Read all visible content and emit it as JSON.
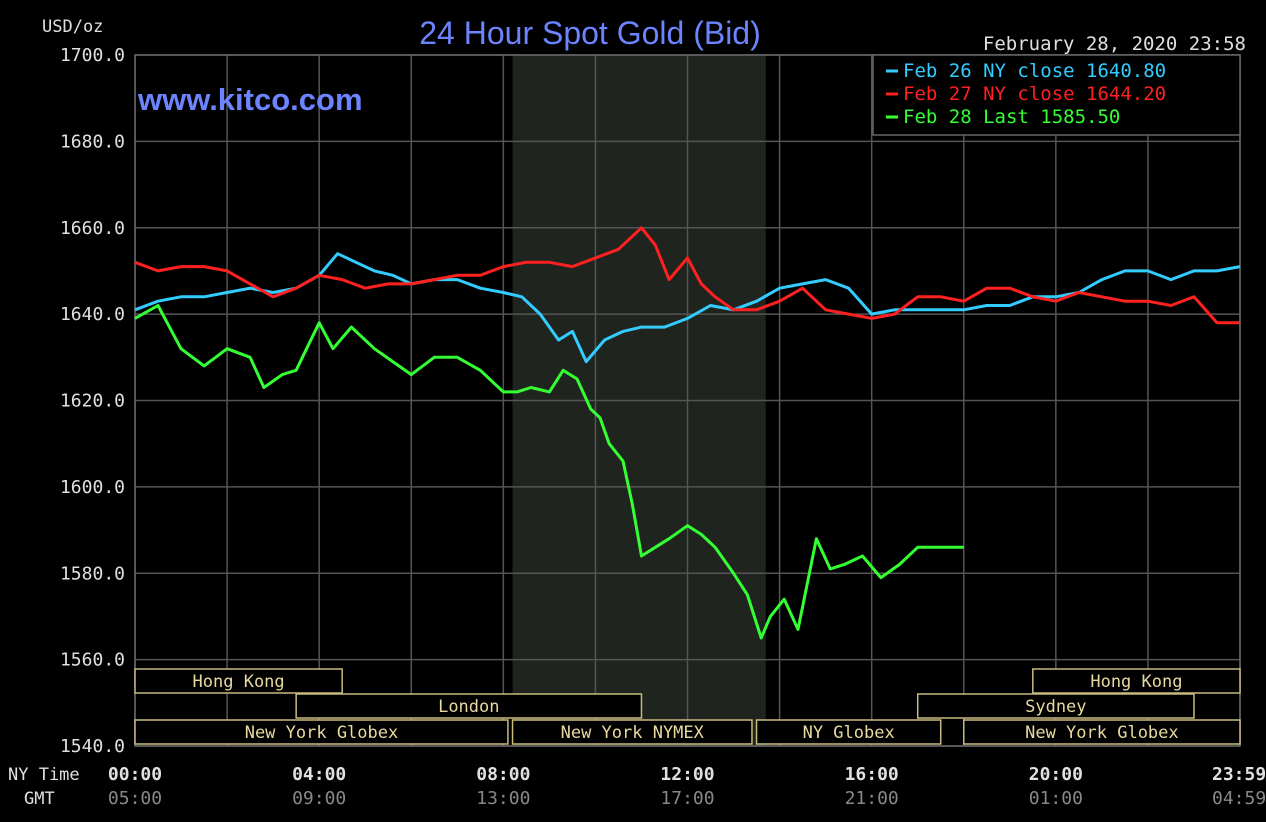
{
  "chart_data": {
    "type": "line",
    "title": "24 Hour Spot Gold (Bid)",
    "watermark": "www.kitco.com",
    "timestamp": "February 28, 2020 23:58",
    "ylabel": "USD/oz",
    "ylim": [
      1540,
      1700
    ],
    "yticks": [
      "1700.0",
      "1680.0",
      "1660.0",
      "1640.0",
      "1620.0",
      "1600.0",
      "1580.0",
      "1560.0",
      "1540.0"
    ],
    "ytick_values": [
      1700,
      1680,
      1660,
      1640,
      1620,
      1600,
      1580,
      1560,
      1540
    ],
    "xlim": [
      0,
      24
    ],
    "x_row_labels": {
      "ny": "NY Time",
      "gmt": "GMT"
    },
    "xticks_ny": [
      "00:00",
      "04:00",
      "08:00",
      "12:00",
      "16:00",
      "20:00",
      "23:59"
    ],
    "xticks_gmt": [
      "05:00",
      "09:00",
      "13:00",
      "17:00",
      "21:00",
      "01:00",
      "04:59"
    ],
    "xtick_hours": [
      0,
      4,
      8,
      12,
      16,
      20,
      23.98
    ],
    "grid": true,
    "shaded_region_hours": [
      8.2,
      13.7
    ],
    "legend_position": "top-right",
    "series": [
      {
        "name": "Feb 26 NY close 1640.80",
        "color": "#33ccff",
        "x": [
          0,
          0.5,
          1,
          1.5,
          2,
          2.5,
          3,
          3.5,
          4,
          4.4,
          4.8,
          5.2,
          5.6,
          6,
          6.5,
          7,
          7.5,
          8,
          8.4,
          8.8,
          9.2,
          9.5,
          9.8,
          10.2,
          10.6,
          11,
          11.5,
          12,
          12.5,
          13,
          13.5,
          14,
          14.5,
          15,
          15.5,
          16,
          16.5,
          17,
          17.5,
          18,
          18.5,
          19,
          19.5,
          20,
          20.5,
          21,
          21.5,
          22,
          22.5,
          23,
          23.5,
          24
        ],
        "y": [
          1641,
          1643,
          1644,
          1644,
          1645,
          1646,
          1645,
          1646,
          1649,
          1654,
          1652,
          1650,
          1649,
          1647,
          1648,
          1648,
          1646,
          1645,
          1644,
          1640,
          1634,
          1636,
          1629,
          1634,
          1636,
          1637,
          1637,
          1639,
          1642,
          1641,
          1643,
          1646,
          1647,
          1648,
          1646,
          1640,
          1641,
          1641,
          1641,
          1641,
          1642,
          1642,
          1644,
          1644,
          1645,
          1648,
          1650,
          1650,
          1648,
          1650,
          1650,
          1651
        ]
      },
      {
        "name": "Feb 27 NY close 1644.20",
        "color": "#ff2020",
        "x": [
          0,
          0.5,
          1,
          1.5,
          2,
          2.5,
          3,
          3.5,
          4,
          4.5,
          5,
          5.5,
          6,
          6.5,
          7,
          7.5,
          8,
          8.5,
          9,
          9.5,
          10,
          10.5,
          11,
          11.3,
          11.6,
          12,
          12.3,
          12.6,
          13,
          13.5,
          14,
          14.5,
          15,
          15.5,
          16,
          16.5,
          17,
          17.5,
          18,
          18.5,
          19,
          19.5,
          20,
          20.5,
          21,
          21.5,
          22,
          22.5,
          23,
          23.5,
          24
        ],
        "y": [
          1652,
          1650,
          1651,
          1651,
          1650,
          1647,
          1644,
          1646,
          1649,
          1648,
          1646,
          1647,
          1647,
          1648,
          1649,
          1649,
          1651,
          1652,
          1652,
          1651,
          1653,
          1655,
          1660,
          1656,
          1648,
          1653,
          1647,
          1644,
          1641,
          1641,
          1643,
          1646,
          1641,
          1640,
          1639,
          1640,
          1644,
          1644,
          1643,
          1646,
          1646,
          1644,
          1643,
          1645,
          1644,
          1643,
          1643,
          1642,
          1644,
          1638,
          1638
        ]
      },
      {
        "name": "Feb 28 Last 1585.50",
        "color": "#33ff33",
        "x": [
          0,
          0.5,
          0.8,
          1,
          1.5,
          2,
          2.5,
          2.8,
          3.2,
          3.5,
          4,
          4.3,
          4.7,
          5.2,
          5.6,
          6,
          6.5,
          7,
          7.5,
          8,
          8.3,
          8.6,
          9,
          9.3,
          9.6,
          9.9,
          10.1,
          10.3,
          10.6,
          10.8,
          11,
          11.3,
          11.6,
          12,
          12.3,
          12.6,
          13,
          13.3,
          13.6,
          13.8,
          14.1,
          14.4,
          14.8,
          15.1,
          15.4,
          15.8,
          16.2,
          16.6,
          17,
          17.5,
          18
        ],
        "y": [
          1639,
          1642,
          1636,
          1632,
          1628,
          1632,
          1630,
          1623,
          1626,
          1627,
          1638,
          1632,
          1637,
          1632,
          1629,
          1626,
          1630,
          1630,
          1627,
          1622,
          1622,
          1623,
          1622,
          1627,
          1625,
          1618,
          1616,
          1610,
          1606,
          1596,
          1584,
          1586,
          1588,
          1591,
          1589,
          1586,
          1580,
          1575,
          1565,
          1570,
          1574,
          1567,
          1588,
          1581,
          1582,
          1584,
          1579,
          1582,
          1586,
          1586,
          1586
        ]
      }
    ],
    "sessions": [
      {
        "label": "Hong Kong",
        "start": 0,
        "end": 4.5,
        "row": 0
      },
      {
        "label": "Hong Kong",
        "start": 19.5,
        "end": 24,
        "row": 0
      },
      {
        "label": "London",
        "start": 3.5,
        "end": 11,
        "row": 1
      },
      {
        "label": "Sydney",
        "start": 17,
        "end": 23,
        "row": 1
      },
      {
        "label": "New York Globex",
        "start": 0,
        "end": 8.1,
        "row": 2
      },
      {
        "label": "New York NYMEX",
        "start": 8.2,
        "end": 13.4,
        "row": 2
      },
      {
        "label": "NY Globex",
        "start": 13.5,
        "end": 17.5,
        "row": 2
      },
      {
        "label": "New York Globex",
        "start": 18,
        "end": 24,
        "row": 2
      }
    ],
    "colors": {
      "background": "#000000",
      "grid": "#555555",
      "shaded": "#1f241f",
      "title": "#6d84ff",
      "watermark": "#6d84ff",
      "axis_text": "#e0e0e0",
      "gmt_text": "#888888",
      "session_text": "#e8d9a0",
      "session_box": "#c8bb80"
    }
  }
}
